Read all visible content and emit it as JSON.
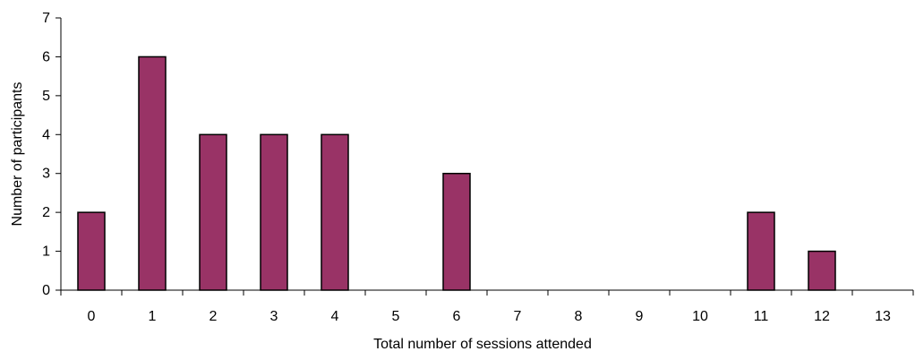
{
  "chart_data": {
    "type": "bar",
    "title": "",
    "xlabel": "Total number of sessions attended",
    "ylabel": "Number of participants",
    "categories": [
      "0",
      "1",
      "2",
      "3",
      "4",
      "5",
      "6",
      "7",
      "8",
      "9",
      "10",
      "11",
      "12",
      "13"
    ],
    "values": [
      2,
      6,
      4,
      4,
      4,
      0,
      3,
      0,
      0,
      0,
      0,
      2,
      1,
      0
    ],
    "ylim": [
      0,
      7
    ],
    "yticks": [
      0,
      1,
      2,
      3,
      4,
      5,
      6,
      7
    ],
    "grid": false,
    "legend": "none",
    "bar_color": "#993366",
    "bar_edge_color": "#000000"
  }
}
